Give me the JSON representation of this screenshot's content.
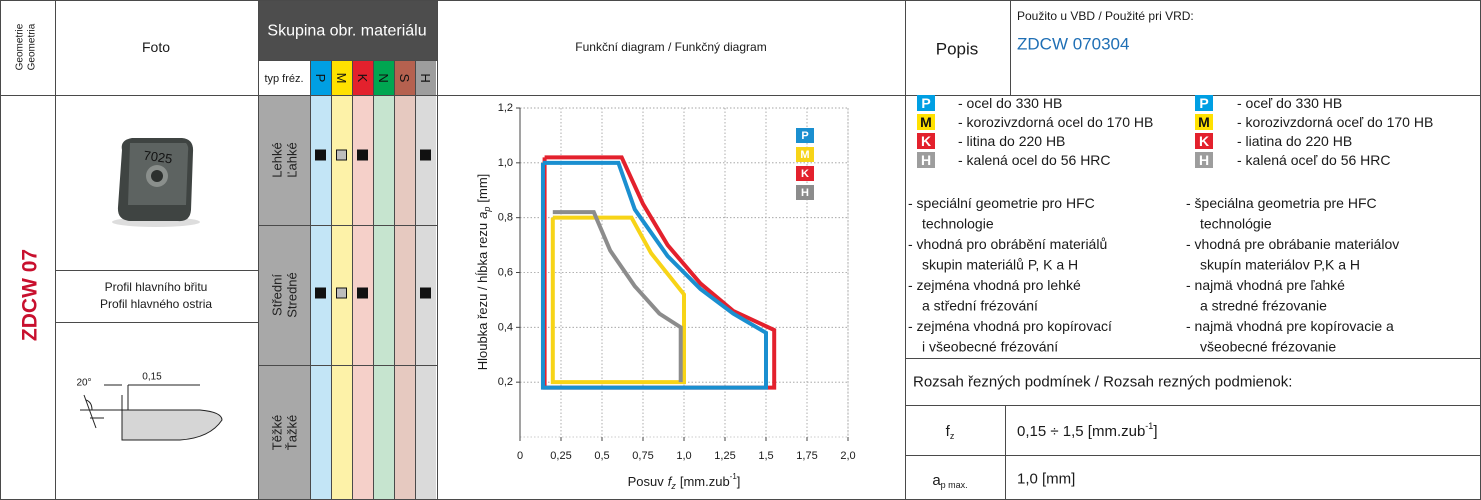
{
  "header": {
    "geometry": [
      "Geometrie",
      "Geometria"
    ],
    "photo": "Foto",
    "material_group": "Skupina obr. materiálu",
    "mill_type": "typ fréz.",
    "materials": [
      {
        "code": "P",
        "color": "#009fe3",
        "light": "#c3e5f6"
      },
      {
        "code": "M",
        "color": "#ffe100",
        "light": "#fdf2a8"
      },
      {
        "code": "K",
        "color": "#e3212d",
        "light": "#f5d0c9"
      },
      {
        "code": "N",
        "color": "#00a651",
        "light": "#c6e4cf"
      },
      {
        "code": "S",
        "color": "#b5614f",
        "light": "#e6c9c0"
      },
      {
        "code": "H",
        "color": "#9d9d9d",
        "light": "#dadada"
      }
    ],
    "diagram": "Funkční diagram / Funkčný diagram",
    "description": "Popis",
    "used_for": "Použito u VBD / Použité pri VRD:",
    "insert_code": "ZDCW 070304"
  },
  "row": {
    "geometry": "ZDCW 07",
    "photo_text": "7025",
    "profile_title": [
      "Profil hlavního břitu",
      "Profil hlavného ostria"
    ],
    "profile_angle": "20°",
    "profile_land": "0,15",
    "operations": [
      {
        "label": [
          "Lehké",
          "Ľahké"
        ],
        "marks": [
          "full",
          "partial",
          "full",
          null,
          null,
          "full"
        ]
      },
      {
        "label": [
          "Střední",
          "Stredné"
        ],
        "marks": [
          "full",
          "partial",
          "full",
          null,
          null,
          "full"
        ]
      },
      {
        "label": [
          "Těžké",
          "Ťažké"
        ],
        "marks": [
          null,
          null,
          null,
          null,
          null,
          null
        ]
      }
    ]
  },
  "materials_legend": {
    "cz": [
      {
        "code": "P",
        "color": "#009fe3",
        "text": "- ocel do 330 HB"
      },
      {
        "code": "M",
        "color": "#ffe100",
        "text": "- korozivzdorná ocel do 170 HB"
      },
      {
        "code": "K",
        "color": "#e3212d",
        "text": "- litina do 220 HB"
      },
      {
        "code": "H",
        "color": "#9d9d9d",
        "text": "- kalená ocel do 56 HRC"
      }
    ],
    "sk": [
      {
        "code": "P",
        "color": "#009fe3",
        "text": "- oceľ do 330 HB"
      },
      {
        "code": "M",
        "color": "#ffe100",
        "text": "- korozivzdorná oceľ do 170 HB"
      },
      {
        "code": "K",
        "color": "#e3212d",
        "text": "- liatina do 220 HB"
      },
      {
        "code": "H",
        "color": "#9d9d9d",
        "text": "- kalená oceľ do 56 HRC"
      }
    ]
  },
  "notes": {
    "cz": [
      "- speciální geometrie pro HFC",
      "technologie",
      "- vhodná pro obrábění materiálů",
      "skupin materiálů P, K a H",
      "- zejména vhodná pro lehké",
      "a střední frézování",
      "- zejména vhodná pro kopírovací",
      "i všeobecné frézování"
    ],
    "sk": [
      "- špeciálna geometria pre HFC",
      "technológie",
      "- vhodná pre obrábanie materiálov",
      "skupín materiálov P,K a H",
      "- najmä vhodná pre ľahké",
      "a stredné frézovanie",
      "- najmä vhodná pre kopírovacie a",
      "všeobecné frézovanie"
    ]
  },
  "conditions": {
    "title": "Rozsah řezných podmínek / Rozsah rezných podmienok:",
    "rows": [
      {
        "param": "f",
        "param_sub": "z",
        "value": "0,15 ÷ 1,5 [mm.zub",
        "value_sup": "-1",
        "value_end": "]"
      },
      {
        "param": "a",
        "param_sub": "p max.",
        "value": "1,0 [mm]"
      }
    ]
  },
  "chart_data": {
    "type": "line",
    "x_label": {
      "prefix": "Posuv",
      "symbol": "f",
      "sub": "z",
      "unit": "[mm.zub",
      "sup": "-1",
      "close": "]"
    },
    "y_label": {
      "prefix": "Hloubka řezu / hĺbka rezu",
      "symbol": "a",
      "sub": "p",
      "unit": "[mm]"
    },
    "xlim": [
      0,
      2.0
    ],
    "ylim": [
      0,
      1.2
    ],
    "xticks": [
      0,
      {
        "value": 0.25,
        "label": "0,25"
      },
      {
        "value": 0.5,
        "label": "0,5"
      },
      {
        "value": 0.75,
        "label": "0,75"
      },
      {
        "value": 1.0,
        "label": "1,0"
      },
      {
        "value": 1.25,
        "label": "1,25"
      },
      {
        "value": 1.5,
        "label": "1,5"
      },
      {
        "value": 1.75,
        "label": "1,75"
      },
      {
        "value": 2.0,
        "label": "2,0"
      }
    ],
    "yticks": [
      {
        "value": 0.2,
        "label": "0,2"
      },
      {
        "value": 0.4,
        "label": "0,4"
      },
      {
        "value": 0.6,
        "label": "0,6"
      },
      {
        "value": 0.8,
        "label": "0,8"
      },
      {
        "value": 1.0,
        "label": "1,0"
      },
      {
        "value": 1.2,
        "label": "1,2"
      }
    ],
    "grid": true,
    "legend": "upper right",
    "series": [
      {
        "name": "P",
        "color": "#1a8fd0",
        "x": [
          0.14,
          0.6,
          0.7,
          0.9,
          1.1,
          1.3,
          1.5,
          1.5,
          0.14,
          0.14
        ],
        "values": [
          1.0,
          1.0,
          0.83,
          0.66,
          0.54,
          0.45,
          0.38,
          0.18,
          0.18,
          1.0
        ]
      },
      {
        "name": "M",
        "color": "#f7d417",
        "x": [
          0.2,
          0.68,
          0.8,
          1.0,
          1.0,
          0.2,
          0.2
        ],
        "values": [
          0.8,
          0.8,
          0.67,
          0.52,
          0.2,
          0.2,
          0.8
        ]
      },
      {
        "name": "K",
        "color": "#e3212d",
        "x": [
          0.15,
          0.62,
          0.75,
          0.9,
          1.1,
          1.3,
          1.55,
          1.55,
          0.15,
          0.15
        ],
        "values": [
          1.02,
          1.02,
          0.85,
          0.7,
          0.56,
          0.46,
          0.39,
          0.18,
          0.18,
          1.02
        ]
      },
      {
        "name": "H",
        "color": "#8c8c8c",
        "x": [
          0.2,
          0.45,
          0.55,
          0.7,
          0.85,
          0.98,
          0.98
        ],
        "values": [
          0.82,
          0.82,
          0.68,
          0.55,
          0.45,
          0.4,
          0.2
        ]
      }
    ]
  }
}
